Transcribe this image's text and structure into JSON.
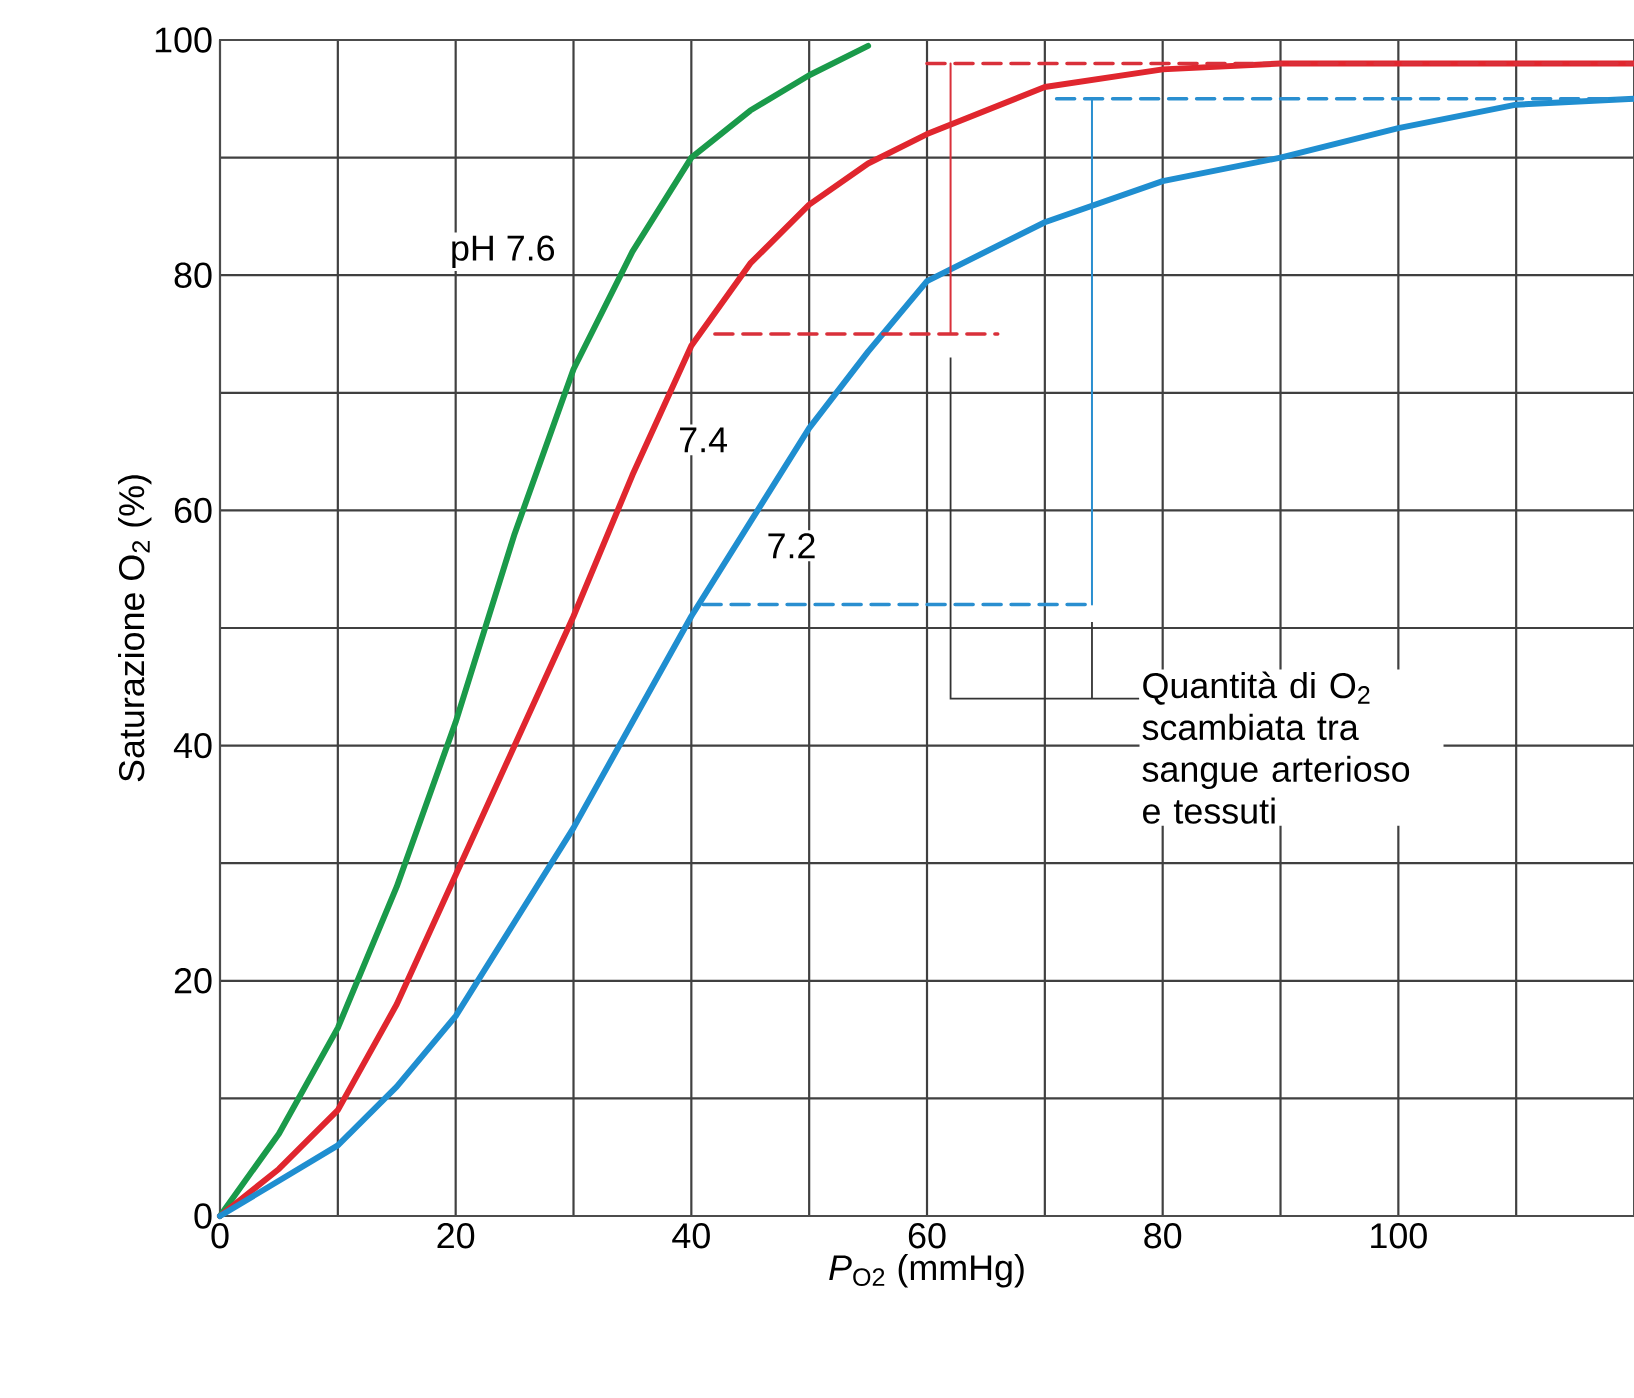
{
  "chart_data": {
    "type": "line",
    "xlabel": "*P*$_{O2}$ (mmHg)",
    "ylabel": "Saturazione O$_{2}$ (%)",
    "xlim": [
      0,
      120
    ],
    "ylim": [
      0,
      100
    ],
    "xticks": [
      0,
      {
        "value": 10,
        "label": null
      },
      20,
      {
        "value": 30,
        "label": null
      },
      40,
      {
        "value": 50,
        "label": null
      },
      60,
      {
        "value": 70,
        "label": null
      },
      80,
      {
        "value": 90,
        "label": null
      },
      100,
      {
        "value": 110,
        "label": null
      }
    ],
    "yticks": [
      0,
      {
        "value": 10,
        "label": null
      },
      20,
      {
        "value": 30,
        "label": null
      },
      40,
      {
        "value": 50,
        "label": null
      },
      60,
      {
        "value": 70,
        "label": null
      },
      80,
      {
        "value": 90,
        "label": null
      },
      100
    ],
    "grid": true,
    "series": [
      {
        "name": "pH 7.6",
        "color": "#1a9a4a",
        "x": [
          0,
          5,
          10,
          15,
          20,
          25,
          30,
          35,
          40,
          45,
          50,
          55
        ],
        "values": [
          0,
          7,
          16,
          28,
          42,
          58,
          72,
          82,
          90,
          94,
          97,
          99.5
        ]
      },
      {
        "name": "7.4",
        "color": "#e0262e",
        "x": [
          0,
          5,
          10,
          15,
          20,
          25,
          30,
          35,
          40,
          45,
          50,
          55,
          60,
          70,
          80,
          90,
          100,
          120
        ],
        "values": [
          0,
          4,
          9,
          18,
          29,
          40,
          51,
          63,
          74,
          81,
          86,
          89.5,
          92,
          96,
          97.5,
          98,
          98,
          98
        ]
      },
      {
        "name": "7.2",
        "color": "#1f8ed0",
        "x": [
          0,
          5,
          10,
          15,
          20,
          25,
          30,
          35,
          40,
          45,
          50,
          55,
          60,
          70,
          80,
          90,
          100,
          110,
          120
        ],
        "values": [
          0,
          3,
          6,
          11,
          17,
          25,
          33,
          42,
          51,
          59,
          67,
          73.5,
          79.5,
          84.5,
          88,
          90,
          92.5,
          94.5,
          95
        ]
      },
      {
        "color": "#d9303a",
        "line_style": "dashed",
        "x": [
          60,
          120
        ],
        "values": [
          98,
          98
        ]
      },
      {
        "color": "#d9303a",
        "line_style": "dashed",
        "x": [
          42,
          66
        ],
        "values": [
          75,
          75
        ]
      },
      {
        "color": "#2a8fd0",
        "line_style": "dashed",
        "x": [
          71,
          120
        ],
        "values": [
          95,
          95
        ]
      },
      {
        "color": "#2a8fd0",
        "line_style": "dashed",
        "x": [
          41,
          74
        ],
        "values": [
          52,
          52
        ]
      },
      {
        "color": "#d9303a",
        "line_style": "solid",
        "x": [
          62,
          62
        ],
        "values": [
          98,
          75
        ]
      },
      {
        "color": "#2a8fd0",
        "line_style": "solid",
        "x": [
          74,
          74
        ],
        "values": [
          95,
          52
        ]
      }
    ],
    "annotations": [
      "Quantità di O$_{2}$ scambiata tra sangue arterioso e tessuti"
    ]
  }
}
